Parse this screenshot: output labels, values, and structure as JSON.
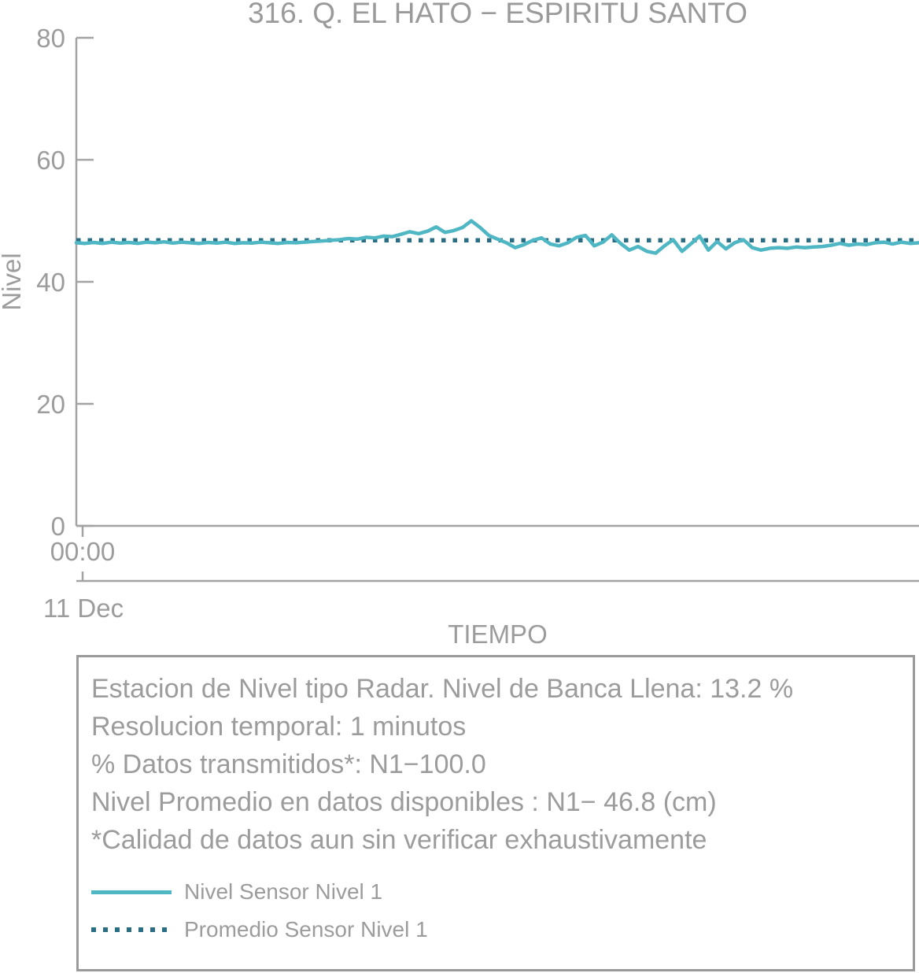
{
  "title": "316. Q. EL HATO − ESPIRITU SANTO",
  "colors": {
    "series": "#4fb6c4",
    "average": "#2a6e86",
    "axis": "#a3a3a3",
    "text": "#9c9c9c",
    "box_border": "#9a9a9a"
  },
  "chart_data": {
    "type": "line",
    "title": "316. Q. EL HATO − ESPIRITU SANTO",
    "xlabel": "TIEMPO",
    "ylabel": "Nivel",
    "ylim": [
      0,
      80
    ],
    "yticks": [
      0,
      20,
      40,
      60,
      80
    ],
    "xlim": [
      0,
      24
    ],
    "x_unit": "hours since 11 Dec 00:00",
    "x_tick_labels": [
      "00:00"
    ],
    "x_date_label": "11 Dec",
    "grid": false,
    "legend_position": "bottom-box",
    "series": [
      {
        "name": "Nivel Sensor Nivel 1",
        "style": "solid",
        "color": "#4fb6c4",
        "x": [
          0,
          0.25,
          0.5,
          0.75,
          1,
          1.25,
          1.5,
          1.75,
          2,
          2.25,
          2.5,
          2.75,
          3,
          3.25,
          3.5,
          3.75,
          4,
          4.25,
          4.5,
          4.75,
          5,
          5.25,
          5.5,
          5.75,
          6,
          6.25,
          6.5,
          6.75,
          7,
          7.25,
          7.5,
          7.75,
          8,
          8.25,
          8.5,
          8.75,
          9,
          9.25,
          9.5,
          9.75,
          10,
          10.25,
          10.5,
          10.75,
          11,
          11.25,
          11.5,
          11.75,
          12,
          12.25,
          12.5,
          12.75,
          13,
          13.25,
          13.5,
          13.75,
          14,
          14.25,
          14.5,
          14.75,
          15,
          15.25,
          15.5,
          15.75,
          16,
          16.25,
          16.5,
          16.75,
          17,
          17.25,
          17.5,
          17.75,
          18,
          18.25,
          18.5,
          18.75,
          19,
          19.25,
          19.5,
          19.75,
          20,
          20.25,
          20.5,
          20.75,
          21,
          21.25,
          21.5,
          21.75,
          22,
          22.25,
          22.5,
          22.75,
          23,
          23.25,
          23.5,
          23.75,
          24
        ],
        "values": [
          46.4,
          46.3,
          46.45,
          46.3,
          46.5,
          46.35,
          46.45,
          46.3,
          46.5,
          46.4,
          46.55,
          46.35,
          46.5,
          46.4,
          46.3,
          46.45,
          46.35,
          46.5,
          46.3,
          46.4,
          46.35,
          46.5,
          46.4,
          46.3,
          46.45,
          46.4,
          46.5,
          46.6,
          46.7,
          46.8,
          46.9,
          47.1,
          47.0,
          47.3,
          47.2,
          47.5,
          47.4,
          47.8,
          48.2,
          47.9,
          48.3,
          49.0,
          48.1,
          48.4,
          48.9,
          50.0,
          48.9,
          47.6,
          47.0,
          46.4,
          45.6,
          46.1,
          46.8,
          47.2,
          46.2,
          45.9,
          46.4,
          47.3,
          47.6,
          45.9,
          46.5,
          47.7,
          46.3,
          45.2,
          45.8,
          45.0,
          44.7,
          45.9,
          46.9,
          45.0,
          46.2,
          47.5,
          45.2,
          46.6,
          45.4,
          46.4,
          46.9,
          45.6,
          45.2,
          45.5,
          45.6,
          45.5,
          45.7,
          45.6,
          45.7,
          45.8,
          46.0,
          46.3,
          46.0,
          46.2,
          46.1,
          46.4,
          46.5,
          46.2,
          46.5,
          46.3,
          46.4
        ]
      },
      {
        "name": "Promedio Sensor Nivel 1",
        "style": "dotted",
        "color": "#2a6e86",
        "constant": 46.8
      }
    ]
  },
  "info_box": {
    "lines": [
      "Estacion de Nivel tipo Radar. Nivel de Banca Llena: 13.2 %",
      "Resolucion temporal: 1 minutos",
      "% Datos transmitidos*: N1−100.0",
      "Nivel Promedio en datos disponibles : N1− 46.8 (cm)",
      "*Calidad de datos aun sin verificar exhaustivamente"
    ],
    "legend": [
      {
        "label": "Nivel Sensor Nivel 1",
        "style": "solid"
      },
      {
        "label": "Promedio Sensor Nivel 1",
        "style": "dotted"
      }
    ]
  }
}
